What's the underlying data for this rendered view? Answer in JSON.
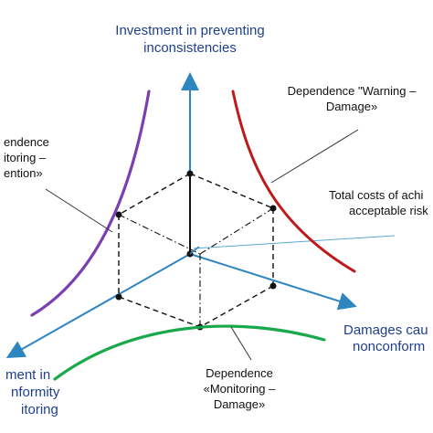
{
  "diagram": {
    "y_axis_label": [
      "Investment in preventing",
      "inconsistencies"
    ],
    "x_axis_label": [
      "Damages cau",
      "nonconform"
    ],
    "z_axis_label": [
      "ment in",
      "nformity",
      "itoring"
    ],
    "curve_labels": {
      "warning_damage": [
        "Dependence \"Warning –",
        "Damage»"
      ],
      "monitoring_prevention": [
        "endence",
        "itoring –",
        "ention»"
      ],
      "monitoring_damage": [
        "Dependence",
        "«Monitoring –",
        "Damage»"
      ],
      "total_costs": [
        "Total costs of achi",
        "acceptable risk"
      ]
    },
    "colors": {
      "axis": "#2e86c1",
      "axis_text": "#1f3f8f",
      "warning_damage_curve": "#c0191b",
      "monitoring_prevention_curve": "#7b3fb4",
      "monitoring_damage_curve": "#19a84a",
      "leader_line": "#333333",
      "total_cost_line": "#5aa9d6",
      "cube_edges": "#111111"
    }
  }
}
